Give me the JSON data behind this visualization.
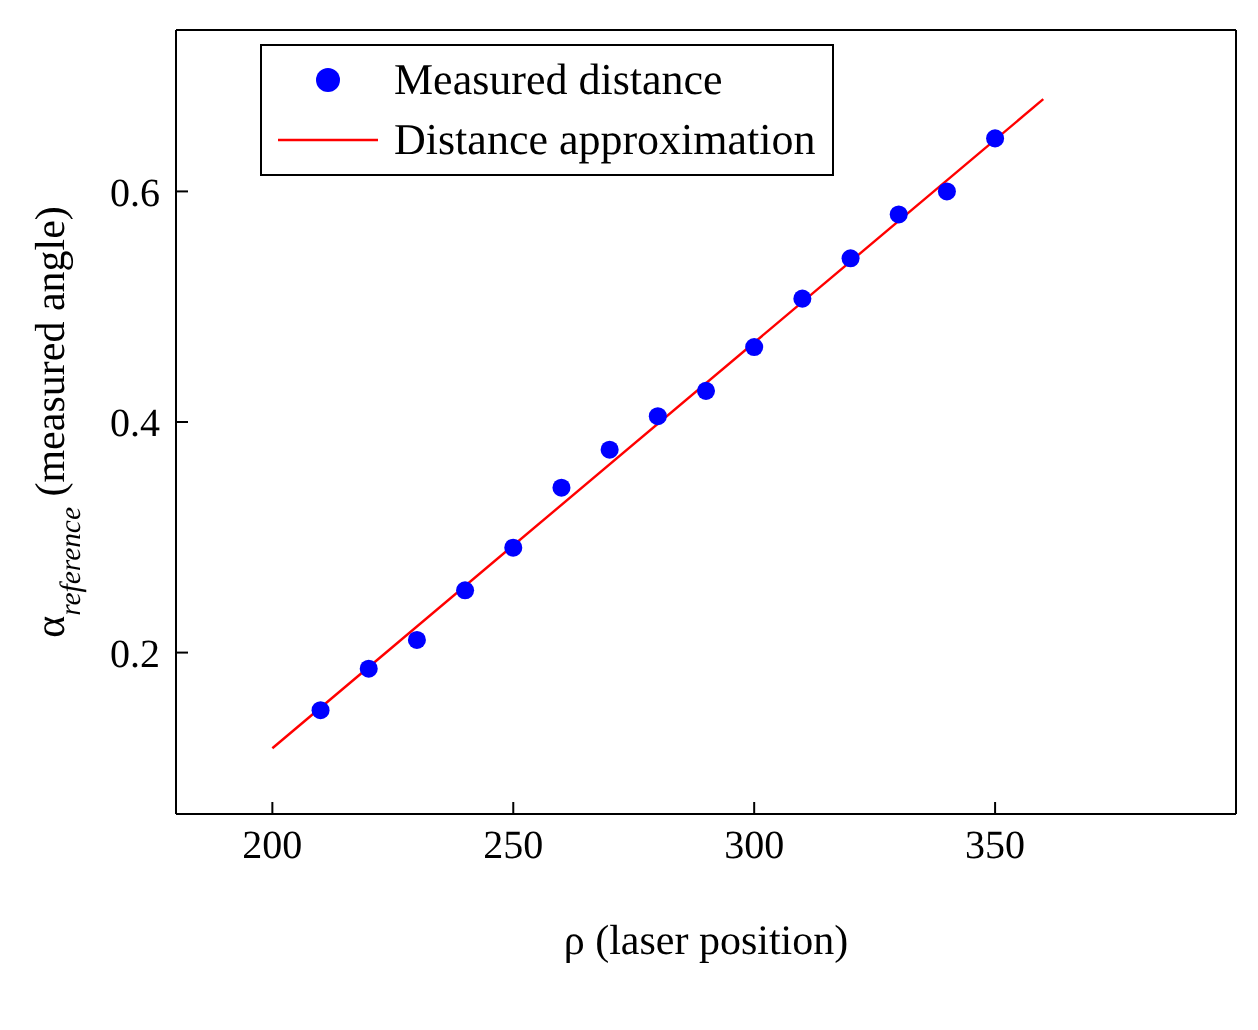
{
  "chart_data": {
    "type": "scatter",
    "xlabel": "ρ (laser position)",
    "ylabel": "α$_{reference}$ (measured angle)",
    "xlim": [
      180,
      400
    ],
    "ylim": [
      0.06,
      0.74
    ],
    "xticks": [
      200,
      250,
      300,
      350
    ],
    "yticks": [
      0.2,
      0.4,
      0.6
    ],
    "legend": "top left",
    "grid": false,
    "series": [
      {
        "name": "Measured distance",
        "marker": "circle",
        "color": "#0000ff",
        "x": [
          210,
          220,
          230,
          240,
          250,
          260,
          270,
          280,
          290,
          300,
          310,
          320,
          330,
          340,
          350
        ],
        "values": [
          0.15,
          0.186,
          0.211,
          0.254,
          0.291,
          0.343,
          0.376,
          0.405,
          0.427,
          0.465,
          0.507,
          0.542,
          0.58,
          0.6,
          0.646
        ]
      },
      {
        "name": "Distance approximation",
        "type": "line",
        "marker": "none",
        "color": "#ff0000",
        "x": [
          200,
          360
        ],
        "values": [
          0.117,
          0.68
        ]
      }
    ]
  }
}
